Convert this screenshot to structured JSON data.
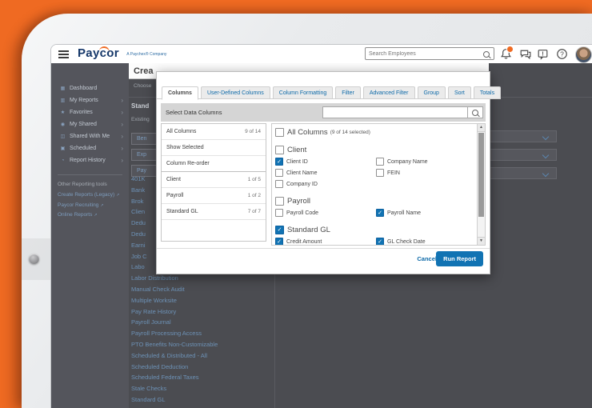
{
  "app_header": {
    "logo_text": "Paycor",
    "logo_tagline": "A Paychex® Company",
    "search_placeholder": "Search Employees",
    "icons": [
      {
        "name": "bell-icon",
        "badge": true
      },
      {
        "name": "chat-icon",
        "badge": false
      },
      {
        "name": "feedback-icon",
        "badge": false
      },
      {
        "name": "help-icon",
        "badge": false
      }
    ]
  },
  "sidebar": {
    "items": [
      {
        "label": "Dashboard",
        "icon": "dashboard-icon",
        "chevron": false
      },
      {
        "label": "My Reports",
        "icon": "my-reports-icon",
        "chevron": true
      },
      {
        "label": "Favorites",
        "icon": "favorites-icon",
        "chevron": true
      },
      {
        "label": "My Shared",
        "icon": "my-shared-icon",
        "chevron": true
      },
      {
        "label": "Shared With Me",
        "icon": "shared-with-me-icon",
        "chevron": true
      },
      {
        "label": "Scheduled",
        "icon": "scheduled-icon",
        "chevron": true
      },
      {
        "label": "Report History",
        "icon": "report-history-icon",
        "chevron": true
      }
    ],
    "tools_title": "Other Reporting tools",
    "tool_links": [
      "Create Reports (Legacy)",
      "Paycor Recruiting",
      "Online Reports"
    ]
  },
  "page": {
    "title_partial": "Crea",
    "subtitle_partial": "Choose",
    "section_title_partial": "Stand",
    "section_subtitle_partial": "Existing",
    "category_buttons_partial": [
      "Ben",
      "Exp",
      "Pay"
    ],
    "report_links": [
      "401K",
      "Bank",
      "Brok",
      "Clien",
      "Dedu",
      "Dedu",
      "Earni",
      "Job C",
      "Labo",
      "Labor Distribution",
      "Manual Check Audit",
      "Multiple Worksite",
      "Pay Rate History",
      "Payroll Journal",
      "Payroll Processing Access",
      "PTO Benefits Non-Customizable",
      "Scheduled & Distributed - All",
      "Scheduled Deduction",
      "Scheduled Federal Taxes",
      "Stale Checks",
      "Standard GL"
    ],
    "dropdown_rows": [
      {
        "icon": "chevron-down-icon"
      },
      {
        "icon": "chevron-down-icon"
      },
      {
        "icon": "chevron-down-icon"
      }
    ]
  },
  "modal": {
    "tabs": [
      {
        "label": "Columns",
        "active": true
      },
      {
        "label": "User-Defined Columns",
        "active": false
      },
      {
        "label": "Column Formatting",
        "active": false
      },
      {
        "label": "Filter",
        "active": false
      },
      {
        "label": "Advanced Filter",
        "active": false
      },
      {
        "label": "Group",
        "active": false
      },
      {
        "label": "Sort",
        "active": false
      },
      {
        "label": "Totals",
        "active": false
      }
    ],
    "panel_title": "Select Data Columns",
    "search_value": "",
    "nav_rows": [
      {
        "label": "All Columns",
        "count": "9 of 14"
      },
      {
        "label": "Show Selected",
        "count": ""
      },
      {
        "label": "Column Re-order",
        "count": ""
      },
      {
        "label": "Client",
        "count": "1 of 5"
      },
      {
        "label": "Payroll",
        "count": "1 of 2"
      },
      {
        "label": "Standard GL",
        "count": "7 of 7"
      }
    ],
    "sections": [
      {
        "header": "All Columns",
        "suffix": "(9 of 14 selected)",
        "checked": false,
        "items": []
      },
      {
        "header": "Client",
        "suffix": "",
        "checked": false,
        "items": [
          {
            "label": "Client ID",
            "checked": true
          },
          {
            "label": "Company Name",
            "checked": false
          },
          {
            "label": "Client Name",
            "checked": false
          },
          {
            "label": "FEIN",
            "checked": false
          },
          {
            "label": "Company ID",
            "checked": false
          }
        ]
      },
      {
        "header": "Payroll",
        "suffix": "",
        "checked": false,
        "items": [
          {
            "label": "Payroll Code",
            "checked": false
          },
          {
            "label": "Payroll Name",
            "checked": true
          }
        ]
      },
      {
        "header": "Standard GL",
        "suffix": "",
        "checked": true,
        "items": [
          {
            "label": "Credit Amount",
            "checked": true
          },
          {
            "label": "GL Check Date",
            "checked": true
          }
        ]
      }
    ],
    "cancel_label": "Cancel",
    "run_label": "Run Report"
  },
  "colors": {
    "accent_orange": "#ef6a22",
    "link_blue": "#0c69a8",
    "checked_blue": "#1173b3",
    "logo_navy": "#16386a"
  }
}
